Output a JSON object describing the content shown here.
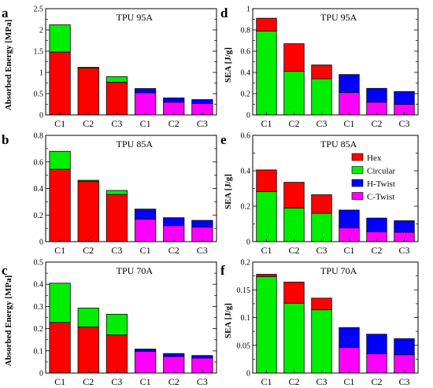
{
  "legend": [
    {
      "name": "Hex",
      "color": "#ff0000"
    },
    {
      "name": "Circular",
      "color": "#00ee00"
    },
    {
      "name": "H-Twist",
      "color": "#0000ff"
    },
    {
      "name": "C-Twist",
      "color": "#ff00ff"
    }
  ],
  "chart_data": [
    {
      "panel_label": "a",
      "type": "bar",
      "stacked": true,
      "title": "TPU 95A",
      "ylabel": "Absorbed Energy [MPa]",
      "ylim": [
        0,
        2.5
      ],
      "yticks": [
        0,
        0.5,
        1,
        1.5,
        2,
        2.5
      ],
      "ytick_labels": [
        "0",
        "0.5",
        "1",
        "1.5",
        "2",
        "2.5"
      ],
      "categories": [
        "C1",
        "C2",
        "C3",
        "C1",
        "C2",
        "C3"
      ],
      "bars": [
        {
          "bottom": 1.48,
          "top": 0.64,
          "bottom_series": "Hex",
          "top_series": "Circular"
        },
        {
          "bottom": 1.1,
          "top": 0.02,
          "bottom_series": "Hex",
          "top_series": "Circular"
        },
        {
          "bottom": 0.77,
          "top": 0.13,
          "bottom_series": "Hex",
          "top_series": "Circular"
        },
        {
          "bottom": 0.52,
          "top": 0.1,
          "bottom_series": "C-Twist",
          "top_series": "H-Twist"
        },
        {
          "bottom": 0.3,
          "top": 0.1,
          "bottom_series": "C-Twist",
          "top_series": "H-Twist"
        },
        {
          "bottom": 0.27,
          "top": 0.09,
          "bottom_series": "C-Twist",
          "top_series": "H-Twist"
        }
      ]
    },
    {
      "panel_label": "b",
      "type": "bar",
      "stacked": true,
      "title": "TPU 85A",
      "ylabel": "",
      "ylim": [
        0,
        0.8
      ],
      "yticks": [
        0,
        0.2,
        0.4,
        0.6,
        0.8
      ],
      "ytick_labels": [
        "0",
        "0.2",
        "0.4",
        "0.6",
        "0.8"
      ],
      "categories": [
        "C1",
        "C2",
        "C3",
        "C1",
        "C2",
        "C3"
      ],
      "bars": [
        {
          "bottom": 0.545,
          "top": 0.135,
          "bottom_series": "Hex",
          "top_series": "Circular"
        },
        {
          "bottom": 0.455,
          "top": 0.007,
          "bottom_series": "Hex",
          "top_series": "Circular"
        },
        {
          "bottom": 0.355,
          "top": 0.03,
          "bottom_series": "Hex",
          "top_series": "Circular"
        },
        {
          "bottom": 0.17,
          "top": 0.075,
          "bottom_series": "C-Twist",
          "top_series": "H-Twist"
        },
        {
          "bottom": 0.12,
          "top": 0.06,
          "bottom_series": "C-Twist",
          "top_series": "H-Twist"
        },
        {
          "bottom": 0.11,
          "top": 0.05,
          "bottom_series": "C-Twist",
          "top_series": "H-Twist"
        }
      ]
    },
    {
      "panel_label": "c",
      "type": "bar",
      "stacked": true,
      "title": "TPU 70A",
      "ylabel": "Absorbed Energy [MPa]",
      "ylim": [
        0,
        0.5
      ],
      "yticks": [
        0,
        0.1,
        0.2,
        0.3,
        0.4,
        0.5
      ],
      "ytick_labels": [
        "0",
        "0.1",
        "0.2",
        "0.3",
        "0.4",
        "0.5"
      ],
      "categories": [
        "C1",
        "C2",
        "C3",
        "C1",
        "C2",
        "C3"
      ],
      "bars": [
        {
          "bottom": 0.228,
          "top": 0.177,
          "bottom_series": "Hex",
          "top_series": "Circular"
        },
        {
          "bottom": 0.208,
          "top": 0.085,
          "bottom_series": "Hex",
          "top_series": "Circular"
        },
        {
          "bottom": 0.172,
          "top": 0.093,
          "bottom_series": "Hex",
          "top_series": "Circular"
        },
        {
          "bottom": 0.098,
          "top": 0.01,
          "bottom_series": "C-Twist",
          "top_series": "H-Twist"
        },
        {
          "bottom": 0.075,
          "top": 0.013,
          "bottom_series": "C-Twist",
          "top_series": "H-Twist"
        },
        {
          "bottom": 0.068,
          "top": 0.011,
          "bottom_series": "C-Twist",
          "top_series": "H-Twist"
        }
      ]
    },
    {
      "panel_label": "d",
      "type": "bar",
      "stacked": true,
      "title": "TPU 95A",
      "ylabel": "SEA [J/g]",
      "ylim": [
        0,
        1.0
      ],
      "yticks": [
        0,
        0.2,
        0.4,
        0.6,
        0.8,
        1.0
      ],
      "ytick_labels": [
        "0",
        "0.2",
        "0.4",
        "0.6",
        "0.8",
        "1"
      ],
      "categories": [
        "C1",
        "C2",
        "C3",
        "C1",
        "C2",
        "C3"
      ],
      "bars": [
        {
          "bottom": 0.79,
          "top": 0.12,
          "bottom_series": "Circular",
          "top_series": "Hex"
        },
        {
          "bottom": 0.41,
          "top": 0.26,
          "bottom_series": "Circular",
          "top_series": "Hex"
        },
        {
          "bottom": 0.34,
          "top": 0.13,
          "bottom_series": "Circular",
          "top_series": "Hex"
        },
        {
          "bottom": 0.21,
          "top": 0.17,
          "bottom_series": "C-Twist",
          "top_series": "H-Twist"
        },
        {
          "bottom": 0.12,
          "top": 0.13,
          "bottom_series": "C-Twist",
          "top_series": "H-Twist"
        },
        {
          "bottom": 0.1,
          "top": 0.12,
          "bottom_series": "C-Twist",
          "top_series": "H-Twist"
        }
      ]
    },
    {
      "panel_label": "e",
      "type": "bar",
      "stacked": true,
      "title": "TPU 85A",
      "ylabel": "SEA [J/g]",
      "ylim": [
        0,
        0.6
      ],
      "yticks": [
        0,
        0.2,
        0.4,
        0.6
      ],
      "ytick_labels": [
        "0",
        "0.2",
        "0.4",
        "0.6"
      ],
      "categories": [
        "C1",
        "C2",
        "C3",
        "C1",
        "C2",
        "C3"
      ],
      "bars": [
        {
          "bottom": 0.283,
          "top": 0.122,
          "bottom_series": "Circular",
          "top_series": "Hex"
        },
        {
          "bottom": 0.19,
          "top": 0.145,
          "bottom_series": "Circular",
          "top_series": "Hex"
        },
        {
          "bottom": 0.16,
          "top": 0.105,
          "bottom_series": "Circular",
          "top_series": "Hex"
        },
        {
          "bottom": 0.078,
          "top": 0.1,
          "bottom_series": "C-Twist",
          "top_series": "H-Twist"
        },
        {
          "bottom": 0.055,
          "top": 0.078,
          "bottom_series": "C-Twist",
          "top_series": "H-Twist"
        },
        {
          "bottom": 0.053,
          "top": 0.065,
          "bottom_series": "C-Twist",
          "top_series": "H-Twist"
        }
      ]
    },
    {
      "panel_label": "f",
      "type": "bar",
      "stacked": true,
      "title": "TPU 70A",
      "ylabel": "SEA [J/g]",
      "ylim": [
        0,
        0.2
      ],
      "yticks": [
        0,
        0.05,
        0.1,
        0.15,
        0.2
      ],
      "ytick_labels": [
        "0",
        "0.05",
        "0.1",
        "0.15",
        "0.2"
      ],
      "categories": [
        "C1",
        "C2",
        "C3",
        "C1",
        "C2",
        "C3"
      ],
      "bars": [
        {
          "bottom": 0.174,
          "top": 0.004,
          "bottom_series": "Circular",
          "top_series": "Hex"
        },
        {
          "bottom": 0.126,
          "top": 0.038,
          "bottom_series": "Circular",
          "top_series": "Hex"
        },
        {
          "bottom": 0.114,
          "top": 0.021,
          "bottom_series": "Circular",
          "top_series": "Hex"
        },
        {
          "bottom": 0.046,
          "top": 0.036,
          "bottom_series": "C-Twist",
          "top_series": "H-Twist"
        },
        {
          "bottom": 0.035,
          "top": 0.035,
          "bottom_series": "C-Twist",
          "top_series": "H-Twist"
        },
        {
          "bottom": 0.033,
          "top": 0.029,
          "bottom_series": "C-Twist",
          "top_series": "H-Twist"
        }
      ]
    }
  ]
}
